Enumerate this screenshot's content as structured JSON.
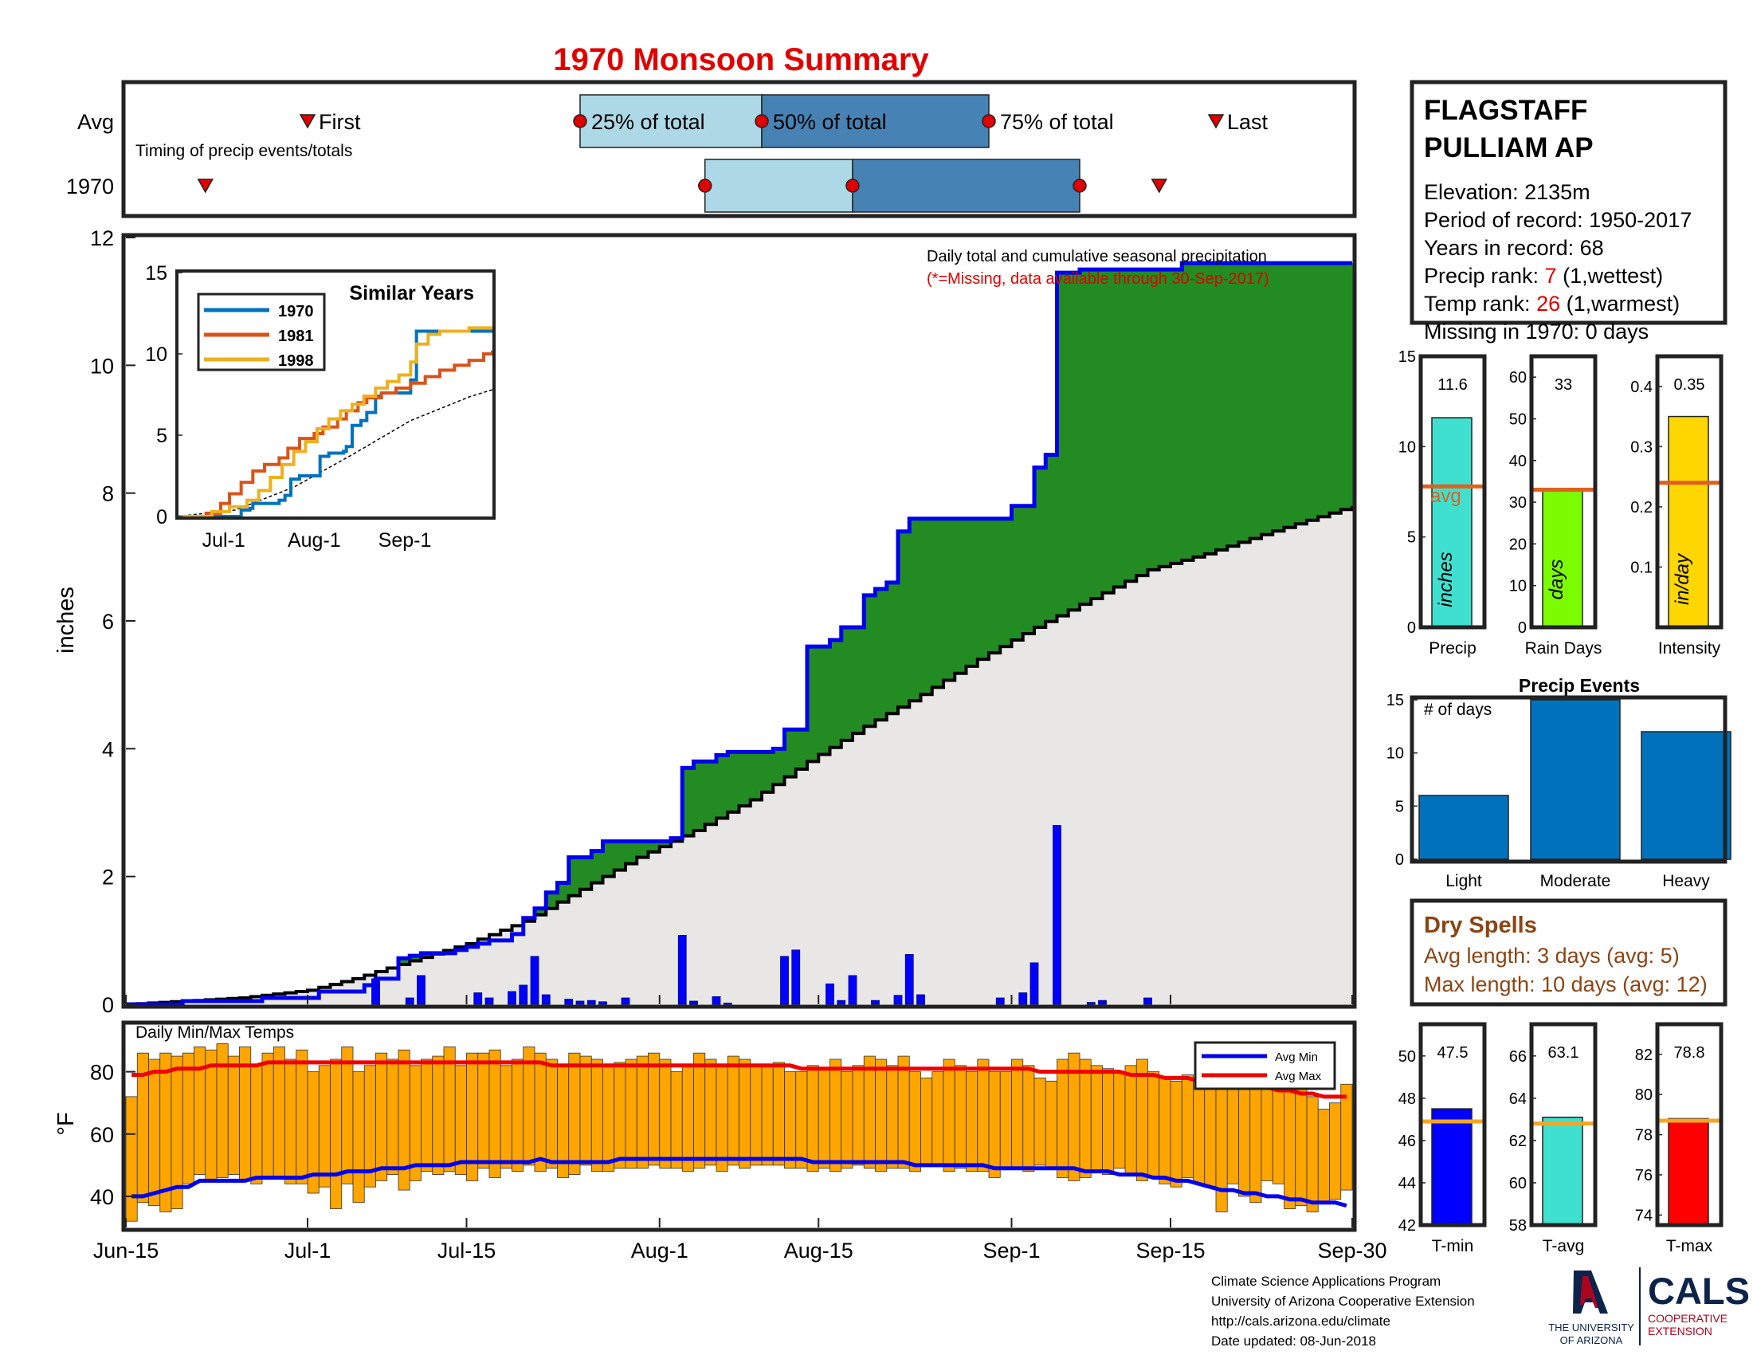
{
  "title": "1970 Monsoon Summary",
  "colors": {
    "title": "#e00000",
    "frame": "#222222",
    "marker": "#e00000",
    "q_light": "#add8e6",
    "q_dark": "#4682b4",
    "avg_cum_fill": "#e8e7e6",
    "above_avg": "#228b22",
    "below_avg": "#b8860b",
    "cum_line": "#0000ee",
    "daily_bar": "#0000ff",
    "temp_bar": "#ffa500",
    "avg_min": "#0000ee",
    "avg_max": "#ee0000",
    "avg_line_orange": "#e06020",
    "avg_line_gold": "#f5a623",
    "precip_bar": "#40e0d0",
    "raindays_bar": "#7cfc00",
    "intensity_bar": "#ffd700",
    "events_bar": "#0072bd",
    "tmin_bar": "#0000ff",
    "tavg_bar": "#40e0d0",
    "tmax_bar": "#ff0000",
    "dry_spells": "#8b4513",
    "s1970": "#0072bd",
    "s1981": "#d95319",
    "s1998": "#edb120",
    "cals_blue": "#0c234b",
    "ua_red": "#ab0520"
  },
  "timing": {
    "row_labels": [
      "Avg",
      "1970"
    ],
    "subtitle": "Timing of precip events/totals",
    "labels": {
      "first": "First",
      "q25": "25% of total",
      "q50": "50% of total",
      "q75": "75% of total",
      "last": "Last"
    },
    "avg": {
      "first": 16,
      "q25": 40,
      "q50": 56,
      "q75": 76,
      "last": 96
    },
    "year": {
      "first": 7,
      "q25": 51,
      "q50": 64,
      "q75": 84,
      "last": 91
    }
  },
  "station": {
    "name_line1": "FLAGSTAFF",
    "name_line2": "PULLIAM AP",
    "elevation": "Elevation: 2135m",
    "period": "Period of record: 1950-2017",
    "years": "Years in record: 68",
    "precip_rank_prefix": "Precip rank: ",
    "precip_rank_value": "7",
    "precip_rank_suffix": " (1,wettest)",
    "temp_rank_prefix": "Temp rank: ",
    "temp_rank_value": "26",
    "temp_rank_suffix": " (1,warmest)",
    "missing": "Missing in 1970: 0 days"
  },
  "stat_bars": [
    {
      "key": "precip",
      "value": 11.6,
      "value_label": "11.6",
      "avg": 7.8,
      "ylim": [
        0,
        15
      ],
      "ticks": [
        0,
        5,
        10,
        15
      ],
      "xlabel": "Precip",
      "unit": "inches",
      "avg_label": "avg"
    },
    {
      "key": "raindays",
      "value": 33,
      "value_label": "33",
      "avg": 33,
      "ylim": [
        0,
        65
      ],
      "ticks": [
        0,
        10,
        20,
        30,
        40,
        50,
        60
      ],
      "xlabel": "Rain Days",
      "unit": "days"
    },
    {
      "key": "intensity",
      "value": 0.35,
      "value_label": "0.35",
      "avg": 0.24,
      "ylim": [
        0,
        0.45
      ],
      "ticks": [
        0.1,
        0.2,
        0.3,
        0.4
      ],
      "xlabel": "Intensity",
      "unit": "in/day"
    }
  ],
  "precip_events": {
    "title": "Precip Events",
    "ylabel_text": "# of days",
    "categories": [
      "Light",
      "Moderate",
      "Heavy"
    ],
    "values": [
      6,
      15,
      12
    ],
    "ylim": [
      0,
      15
    ],
    "ticks": [
      0,
      5,
      10,
      15
    ]
  },
  "dry_spells": {
    "title": "Dry Spells",
    "avg_length": "Avg length: 3 days (avg: 5)",
    "max_length": "Max length: 10 days (avg: 12)"
  },
  "temp_bars": [
    {
      "key": "tmin",
      "value": 47.5,
      "value_label": "47.5",
      "avg": 46.9,
      "ylim": [
        42,
        51.5
      ],
      "ticks": [
        42,
        44,
        46,
        48,
        50
      ],
      "xlabel": "T-min"
    },
    {
      "key": "tavg",
      "value": 63.1,
      "value_label": "63.1",
      "avg": 62.8,
      "ylim": [
        58,
        67.5
      ],
      "ticks": [
        58,
        60,
        62,
        64,
        66
      ],
      "xlabel": "T-avg"
    },
    {
      "key": "tmax",
      "value": 78.8,
      "value_label": "78.8",
      "avg": 78.7,
      "ylim": [
        73.5,
        83.5
      ],
      "ticks": [
        74,
        76,
        78,
        80,
        82
      ],
      "xlabel": "T-max"
    }
  ],
  "footer": {
    "line1": "Climate Science Applications Program",
    "line2": "University of Arizona Cooperative Extension",
    "line3": "http://cals.arizona.edu/climate",
    "line4": " Date updated: 08-Jun-2018",
    "logo_ua_text1": "THE UNIVERSITY",
    "logo_ua_text2": "OF ARIZONA",
    "logo_cals": "CALS",
    "logo_coop1": "COOPERATIVE",
    "logo_coop2": "EXTENSION"
  },
  "chart_data": [
    {
      "type": "area",
      "id": "main",
      "title": "Daily total and cumulative seasonal precipitation",
      "subtitle": "(*=Missing, data available through 30-Sep-2017)",
      "ylabel": "inches",
      "ylim": [
        0,
        12
      ],
      "yticks": [
        0,
        2,
        4,
        6,
        8,
        10,
        12
      ],
      "xlim": [
        "Jun-15",
        "Sep-30"
      ],
      "xticks": [
        "Jun-15",
        "Jul-1",
        "Jul-15",
        "Aug-1",
        "Aug-15",
        "Sep-1",
        "Sep-15",
        "Sep-30"
      ],
      "avg_cumulative": {
        "days": [
          0,
          10,
          16,
          20,
          25,
          30,
          35,
          40,
          45,
          50,
          55,
          60,
          65,
          70,
          75,
          80,
          85,
          90,
          95,
          100,
          108
        ],
        "values": [
          0,
          0.1,
          0.22,
          0.4,
          0.68,
          0.95,
          1.3,
          1.8,
          2.3,
          2.72,
          3.2,
          3.8,
          4.35,
          4.85,
          5.4,
          5.9,
          6.35,
          6.8,
          7.05,
          7.35,
          7.8
        ]
      },
      "cumulative_1970": {
        "days": [
          0,
          5,
          12,
          17,
          21,
          22,
          24,
          25,
          26,
          29,
          30,
          31,
          32,
          34,
          35,
          36,
          37,
          38,
          39,
          41,
          42,
          48,
          49,
          50,
          52,
          53,
          57,
          58,
          60,
          61,
          62,
          63,
          65,
          66,
          67,
          68,
          69,
          70,
          72,
          78,
          79,
          80,
          81,
          82,
          83,
          84,
          85,
          86,
          87,
          88,
          93,
          108
        ],
        "values": [
          0,
          0.05,
          0.1,
          0.2,
          0.3,
          0.4,
          0.72,
          0.76,
          0.8,
          0.85,
          0.9,
          0.95,
          1.0,
          1.1,
          1.35,
          1.5,
          1.75,
          1.9,
          2.3,
          2.4,
          2.55,
          2.6,
          3.7,
          3.8,
          3.9,
          3.95,
          4.0,
          4.3,
          5.6,
          5.6,
          5.7,
          5.9,
          6.4,
          6.5,
          6.6,
          7.4,
          7.6,
          7.6,
          7.6,
          7.8,
          7.8,
          8.4,
          8.6,
          11.45,
          11.45,
          11.5,
          11.5,
          11.5,
          11.5,
          11.5,
          11.6,
          11.6
        ]
      },
      "daily_1970": {
        "days": [
          22,
          25,
          26,
          31,
          32,
          34,
          35,
          36,
          37,
          39,
          40,
          41,
          42,
          44,
          49,
          50,
          52,
          53,
          58,
          59,
          62,
          63,
          64,
          66,
          68,
          69,
          70,
          77,
          79,
          80,
          82,
          85,
          86,
          90
        ],
        "values": [
          0.4,
          0.1,
          0.45,
          0.18,
          0.1,
          0.2,
          0.3,
          0.75,
          0.15,
          0.08,
          0.05,
          0.06,
          0.04,
          0.1,
          1.08,
          0.05,
          0.12,
          0.02,
          0.75,
          0.85,
          0.32,
          0.06,
          0.45,
          0.06,
          0.14,
          0.78,
          0.15,
          0.1,
          0.18,
          0.65,
          2.8,
          0.03,
          0.06,
          0.1
        ]
      }
    },
    {
      "type": "bar",
      "id": "temps",
      "title": "Daily Min/Max Temps",
      "ylabel": "°F",
      "ylim": [
        30,
        95
      ],
      "yticks": [
        40,
        60,
        80
      ],
      "legend": [
        "Avg Min",
        "Avg Max"
      ],
      "legend_position": "top-right",
      "tmin": [
        32,
        38,
        37,
        35,
        36,
        44,
        47,
        45,
        46,
        47,
        45,
        44,
        46,
        46,
        44,
        44,
        41,
        43,
        36,
        44,
        38,
        43,
        45,
        47,
        42,
        45,
        48,
        47,
        48,
        47,
        45,
        49,
        46,
        49,
        48,
        50,
        48,
        49,
        46,
        47,
        50,
        48,
        48,
        49,
        49,
        49,
        50,
        49,
        49,
        48,
        49,
        50,
        48,
        50,
        49,
        50,
        50,
        50,
        49,
        49,
        48,
        49,
        48,
        49,
        50,
        49,
        48,
        49,
        49,
        48,
        50,
        50,
        48,
        49,
        48,
        48,
        46,
        49,
        49,
        48,
        50,
        49,
        46,
        45,
        46,
        48,
        47,
        49,
        47,
        45,
        46,
        44,
        43,
        46,
        44,
        43,
        35,
        44,
        40,
        38,
        45,
        44,
        36,
        37,
        35,
        38,
        39,
        42
      ],
      "tmax": [
        72,
        86,
        84,
        86,
        85,
        86,
        88,
        87,
        89,
        85,
        88,
        82,
        86,
        88,
        84,
        87,
        80,
        82,
        84,
        88,
        80,
        82,
        86,
        84,
        87,
        82,
        84,
        85,
        88,
        82,
        86,
        86,
        87,
        82,
        84,
        88,
        86,
        84,
        82,
        86,
        85,
        84,
        82,
        83,
        84,
        85,
        86,
        84,
        80,
        82,
        86,
        84,
        82,
        85,
        84,
        82,
        82,
        83,
        80,
        80,
        82,
        81,
        84,
        80,
        82,
        85,
        84,
        82,
        85,
        80,
        78,
        80,
        84,
        82,
        80,
        84,
        80,
        80,
        84,
        82,
        78,
        77,
        84,
        86,
        84,
        82,
        81,
        80,
        82,
        84,
        80,
        78,
        77,
        79,
        78,
        78,
        80,
        82,
        76,
        80,
        80,
        78,
        74,
        76,
        72,
        68,
        70,
        76
      ],
      "avg_min": [
        40,
        40,
        41,
        42,
        43,
        43,
        45,
        45,
        45,
        45,
        45,
        46,
        46,
        46,
        46,
        46,
        47,
        47,
        47,
        48,
        48,
        48,
        49,
        49,
        49,
        50,
        50,
        50,
        50,
        51,
        51,
        51,
        51,
        51,
        51,
        51,
        52,
        51,
        51,
        51,
        51,
        51,
        51,
        52,
        52,
        52,
        52,
        52,
        52,
        52,
        52,
        52,
        52,
        52,
        52,
        52,
        52,
        52,
        52,
        52,
        51,
        51,
        51,
        51,
        51,
        51,
        51,
        51,
        51,
        50,
        50,
        50,
        50,
        50,
        50,
        50,
        49,
        49,
        49,
        49,
        49,
        49,
        49,
        49,
        48,
        48,
        48,
        47,
        47,
        47,
        46,
        46,
        45,
        45,
        44,
        43,
        42,
        42,
        41,
        41,
        40,
        40,
        39,
        39,
        38,
        38,
        38,
        37
      ],
      "avg_max": [
        79,
        79,
        80,
        80,
        81,
        81,
        81,
        82,
        82,
        82,
        82,
        82,
        83,
        83,
        83,
        83,
        83,
        83,
        83,
        83,
        83,
        83,
        83,
        83,
        83,
        83,
        83,
        83,
        83,
        83,
        83,
        83,
        83,
        83,
        83,
        83,
        83,
        82,
        82,
        82,
        82,
        82,
        82,
        82,
        82,
        82,
        82,
        82,
        82,
        82,
        82,
        82,
        82,
        82,
        82,
        82,
        82,
        82,
        82,
        81,
        81,
        81,
        81,
        81,
        81,
        81,
        81,
        81,
        81,
        81,
        81,
        81,
        81,
        81,
        81,
        81,
        81,
        81,
        81,
        81,
        80,
        80,
        80,
        80,
        80,
        80,
        80,
        80,
        79,
        79,
        79,
        78,
        78,
        78,
        77,
        77,
        77,
        76,
        76,
        75,
        75,
        74,
        74,
        73,
        73,
        72,
        72,
        72
      ]
    },
    {
      "type": "line",
      "id": "similar",
      "title": "Similar Years",
      "ylim": [
        0,
        15
      ],
      "yticks": [
        0,
        5,
        10,
        15
      ],
      "xticks": [
        "Jul-1",
        "Aug-1",
        "Sep-1"
      ],
      "series": [
        {
          "name": "1970",
          "days": [
            0,
            22,
            25,
            26,
            35,
            37,
            39,
            42,
            49,
            52,
            57,
            58,
            60,
            63,
            65,
            68,
            70,
            80,
            82,
            108
          ],
          "values": [
            0,
            0.4,
            0.5,
            0.8,
            1.0,
            1.3,
            2.3,
            2.5,
            3.7,
            3.9,
            4.0,
            4.3,
            5.6,
            5.9,
            6.4,
            7.4,
            7.6,
            8.4,
            11.4,
            11.6
          ]
        },
        {
          "name": "1981",
          "days": [
            0,
            10,
            15,
            18,
            22,
            26,
            30,
            35,
            38,
            42,
            47,
            50,
            55,
            58,
            62,
            65,
            70,
            75,
            80,
            85,
            90,
            95,
            100,
            105,
            108
          ],
          "values": [
            0,
            0.2,
            0.8,
            1.4,
            2.1,
            2.8,
            3.2,
            3.6,
            4.2,
            4.8,
            5.1,
            5.5,
            6.0,
            6.5,
            7.0,
            7.3,
            7.6,
            7.9,
            8.2,
            8.6,
            9.0,
            9.3,
            9.6,
            10.0,
            10.2
          ]
        },
        {
          "name": "1998",
          "days": [
            0,
            12,
            18,
            24,
            28,
            32,
            36,
            40,
            44,
            48,
            52,
            56,
            60,
            64,
            68,
            72,
            76,
            80,
            82,
            86,
            90,
            100,
            108
          ],
          "values": [
            0,
            0.3,
            0.6,
            1.0,
            1.6,
            2.4,
            3.2,
            4.0,
            4.6,
            5.4,
            6.0,
            6.5,
            6.9,
            7.4,
            7.9,
            8.3,
            8.7,
            9.5,
            10.6,
            11.2,
            11.4,
            11.6,
            11.7
          ]
        }
      ],
      "avg_line": {
        "days": [
          0,
          20,
          40,
          60,
          80,
          100,
          108
        ],
        "values": [
          0,
          0.4,
          1.8,
          3.8,
          5.9,
          7.35,
          7.8
        ]
      }
    }
  ]
}
